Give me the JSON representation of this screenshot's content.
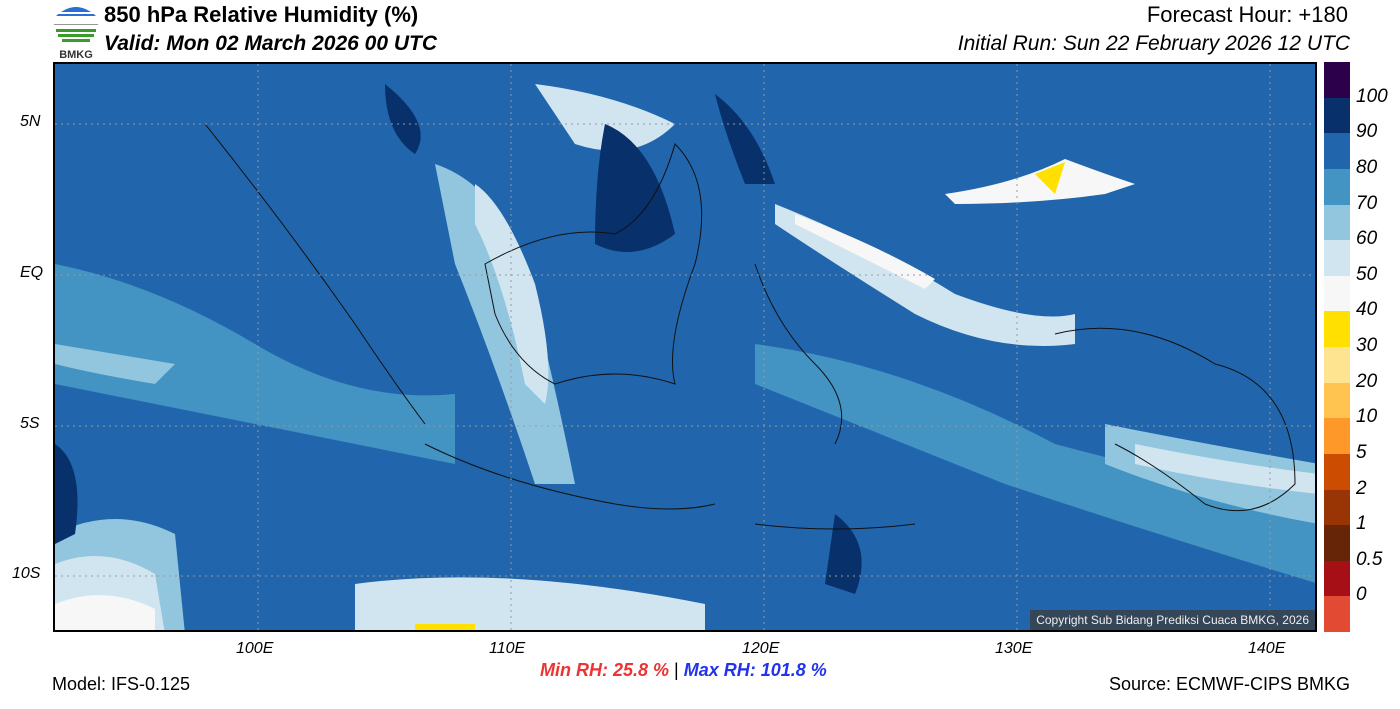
{
  "header": {
    "title": "850 hPa Relative Humidity (%)",
    "valid": "Valid: Mon 02 March 2026 00 UTC",
    "forecast_hour": "Forecast Hour: +180",
    "initial_run": "Initial Run: Sun 22 February 2026 12 UTC",
    "logo_text": "BMKG"
  },
  "map": {
    "lat_ticks": [
      "5N",
      "EQ",
      "5S",
      "10S"
    ],
    "lon_ticks": [
      "100E",
      "110E",
      "120E",
      "130E",
      "140E"
    ],
    "copyright": "Copyright Sub Bidang Prediksi Cuaca BMKG, 2026"
  },
  "colorbar": {
    "labels": [
      "100",
      "90",
      "80",
      "70",
      "60",
      "50",
      "40",
      "30",
      "20",
      "10",
      "5",
      "2",
      "1",
      "0.5",
      "0"
    ],
    "colors": [
      "#2d004b",
      "#08306b",
      "#2166ac",
      "#4393c3",
      "#92c5de",
      "#d1e5f0",
      "#f7f7f7",
      "#ffe000",
      "#fee391",
      "#fec44f",
      "#fe9929",
      "#cc4c02",
      "#993404",
      "#662506",
      "#a50f15",
      "#e34a33"
    ]
  },
  "footer": {
    "model": "Model: IFS-0.125",
    "min_rh": "Min RH:  25.8 %",
    "separator": "|",
    "max_rh": "Max RH: 101.8 %",
    "source": "Source: ECMWF-CIPS BMKG",
    "min_color": "#ee3333",
    "max_color": "#2233ee"
  }
}
